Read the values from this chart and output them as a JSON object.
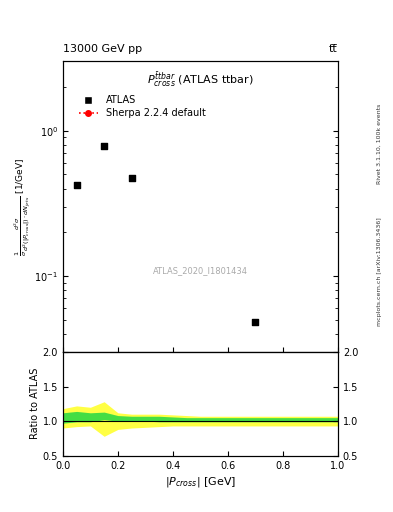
{
  "title_top": "13000 GeV pp",
  "title_right": "tt̅",
  "plot_title": "$P^{\\bar{t}tbar}_{cross}$ (ATLAS ttbar)",
  "xlabel": "$|P_{cross}|$ [GeV]",
  "ylabel_main": "$\\frac{1}{\\sigma}\\frac{d^2\\sigma}{d^2(|P_{cross}|)\\cdot dN_{jets}}$ [1/GeV]",
  "watermark": "ATLAS_2020_I1801434",
  "right_label_top": "Rivet 3.1.10, 100k events",
  "right_label_bottom": "mcplots.cern.ch [arXiv:1306.3436]",
  "atlas_points_x": [
    0.05,
    0.15,
    0.25,
    0.7
  ],
  "atlas_points_y": [
    0.42,
    0.78,
    0.47,
    0.048
  ],
  "sherpa_ratio_x": [
    0.0,
    0.05,
    0.1,
    0.15,
    0.2,
    0.25,
    0.3,
    0.35,
    0.4,
    0.45,
    0.5,
    0.55,
    0.6,
    0.65,
    0.7,
    0.75,
    0.8,
    0.85,
    0.9,
    0.95,
    1.0
  ],
  "sherpa_green_upper_y": [
    1.12,
    1.14,
    1.12,
    1.13,
    1.08,
    1.07,
    1.07,
    1.07,
    1.06,
    1.05,
    1.05,
    1.05,
    1.05,
    1.05,
    1.05,
    1.05,
    1.05,
    1.05,
    1.05,
    1.05,
    1.05
  ],
  "sherpa_green_lower_y": [
    0.97,
    0.99,
    0.99,
    1.02,
    1.0,
    1.0,
    1.0,
    0.99,
    0.99,
    0.99,
    0.99,
    0.99,
    0.99,
    0.99,
    0.99,
    0.99,
    0.99,
    0.99,
    0.99,
    0.99,
    0.99
  ],
  "sherpa_yellow_upper_y": [
    1.18,
    1.22,
    1.2,
    1.28,
    1.12,
    1.1,
    1.1,
    1.1,
    1.09,
    1.08,
    1.07,
    1.07,
    1.07,
    1.07,
    1.07,
    1.07,
    1.07,
    1.07,
    1.07,
    1.07,
    1.07
  ],
  "sherpa_yellow_lower_y": [
    0.9,
    0.92,
    0.93,
    0.78,
    0.88,
    0.9,
    0.91,
    0.92,
    0.93,
    0.93,
    0.93,
    0.93,
    0.93,
    0.93,
    0.93,
    0.93,
    0.93,
    0.93,
    0.93,
    0.93,
    0.93
  ],
  "xlim": [
    0.0,
    1.0
  ],
  "ylim_main": [
    0.03,
    3.0
  ],
  "ylim_ratio": [
    0.5,
    2.0
  ],
  "sherpa_color": "#ff0000",
  "green_color": "#44dd44",
  "yellow_color": "#ffff44",
  "background_color": "#ffffff",
  "label_atlas": "ATLAS",
  "label_sherpa": "Sherpa 2.2.4 default",
  "ratio_ylabel": "Ratio to ATLAS"
}
